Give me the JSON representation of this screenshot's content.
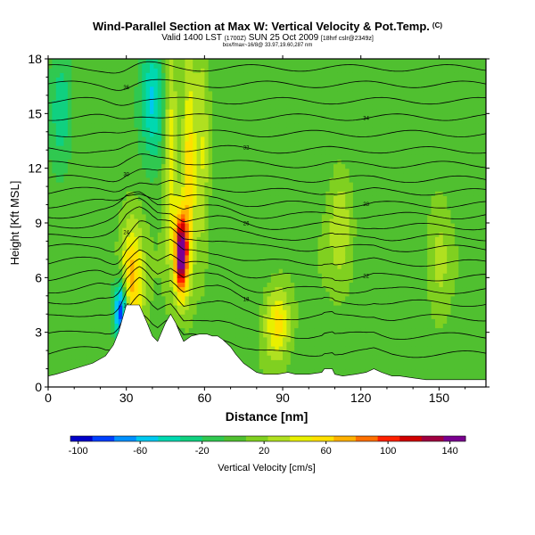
{
  "header": {
    "title": "Wind-Parallel Section at Max W: Vertical Velocity & Pot.Temp.",
    "title_units": "(C)",
    "valid": "Valid 1400 LST",
    "valid_utc": "(1700Z)",
    "valid_date": "SUN 25 Oct 2009",
    "forecast_info": "[18hrf cslr@2349z]",
    "section_info": "box/fmax~16/8@ 33.97,19.60,287 nm"
  },
  "chart_data": {
    "type": "heatmap",
    "title": "Wind-Parallel Section at Max W: Vertical Velocity & Pot.Temp.",
    "xlabel": "Distance [nm]",
    "ylabel": "Height [Kft MSL]",
    "xlim": [
      0,
      168
    ],
    "ylim": [
      0,
      18
    ],
    "xticks": [
      0,
      30,
      60,
      90,
      120,
      150
    ],
    "yticks": [
      0,
      3,
      6,
      9,
      12,
      15,
      18
    ],
    "colorbar": {
      "label": "Vertical Velocity [cm/s]",
      "min": -105,
      "max": 150,
      "ticks": [
        -100,
        -60,
        -20,
        20,
        60,
        100,
        140
      ],
      "colors": [
        "#0000c8",
        "#0040ff",
        "#0090ff",
        "#00c8f0",
        "#00d8b0",
        "#10d080",
        "#30c850",
        "#50c030",
        "#80d020",
        "#b0e020",
        "#e8f000",
        "#ffe000",
        "#ffb000",
        "#ff7000",
        "#ff2000",
        "#d00000",
        "#a00040",
        "#7a0090"
      ]
    },
    "terrain": {
      "distance": [
        0,
        3,
        10,
        17,
        22,
        25,
        27,
        30,
        32,
        35,
        38,
        40,
        42,
        45,
        47,
        49,
        51,
        52,
        55,
        58,
        60,
        61,
        63,
        65,
        67,
        70,
        72,
        75,
        78,
        80,
        83,
        88,
        92,
        95,
        100,
        105,
        106,
        109,
        110,
        113,
        118,
        122,
        125,
        128,
        132,
        135,
        140,
        145,
        150,
        155,
        160,
        168
      ],
      "height": [
        0.6,
        0.7,
        1.0,
        1.3,
        1.7,
        2.3,
        3.0,
        4.5,
        4.5,
        4.5,
        3.5,
        2.8,
        2.5,
        3.5,
        4.0,
        3.5,
        2.8,
        2.5,
        2.8,
        2.9,
        2.9,
        2.9,
        2.8,
        2.8,
        2.6,
        2.2,
        1.8,
        1.3,
        1.0,
        0.8,
        0.7,
        0.7,
        0.8,
        0.7,
        0.7,
        0.8,
        1.0,
        1.0,
        0.7,
        0.6,
        0.7,
        0.8,
        1.0,
        0.8,
        0.6,
        0.6,
        0.5,
        0.4,
        0.4,
        0.4,
        0.4,
        0.4
      ]
    },
    "velocity_features": [
      {
        "name": "downdraft-lee-slope",
        "distance": 28,
        "height": 4.2,
        "value": -105
      },
      {
        "name": "updraft-core",
        "distance": 51,
        "height": 7.3,
        "value": 150
      },
      {
        "name": "updraft-column",
        "distance": 54,
        "height": 12,
        "value": 60
      },
      {
        "name": "updraft-column-west",
        "distance": 47,
        "height": 13,
        "value": 50
      },
      {
        "name": "updraft-column-east",
        "distance": 59,
        "height": 13,
        "value": 35
      },
      {
        "name": "updraft-left",
        "distance": 32,
        "height": 5.8,
        "value": 70
      },
      {
        "name": "weak-downdraft-upper",
        "distance": 40,
        "height": 16,
        "value": -50
      },
      {
        "name": "updraft-low-level",
        "distance": 88,
        "height": 3.5,
        "value": 55
      },
      {
        "name": "weak-updraft-mid",
        "distance": 112,
        "height": 9.0,
        "value": 30
      },
      {
        "name": "weak-downdraft-west",
        "distance": 5,
        "height": 15,
        "value": -35
      },
      {
        "name": "weak-updraft-east",
        "distance": 150,
        "height": 7.0,
        "value": 25
      }
    ],
    "isentropes": [
      {
        "base": 1.8,
        "label": ""
      },
      {
        "base": 2.8,
        "label": "16"
      },
      {
        "base": 3.8,
        "label": ""
      },
      {
        "base": 4.6,
        "label": "18"
      },
      {
        "base": 5.3,
        "label": ""
      },
      {
        "base": 6.0,
        "label": "22"
      },
      {
        "base": 6.8,
        "label": ""
      },
      {
        "base": 7.6,
        "label": "24"
      },
      {
        "base": 8.2,
        "label": ""
      },
      {
        "base": 8.8,
        "label": "26"
      },
      {
        "base": 9.4,
        "label": ""
      },
      {
        "base": 10.0,
        "label": "28"
      },
      {
        "base": 10.7,
        "label": ""
      },
      {
        "base": 11.4,
        "label": "30"
      },
      {
        "base": 12.2,
        "label": ""
      },
      {
        "base": 13.0,
        "label": "32"
      },
      {
        "base": 13.9,
        "label": ""
      },
      {
        "base": 14.8,
        "label": "34"
      },
      {
        "base": 15.7,
        "label": ""
      },
      {
        "base": 16.6,
        "label": "36"
      },
      {
        "base": 17.5,
        "label": ""
      }
    ]
  }
}
